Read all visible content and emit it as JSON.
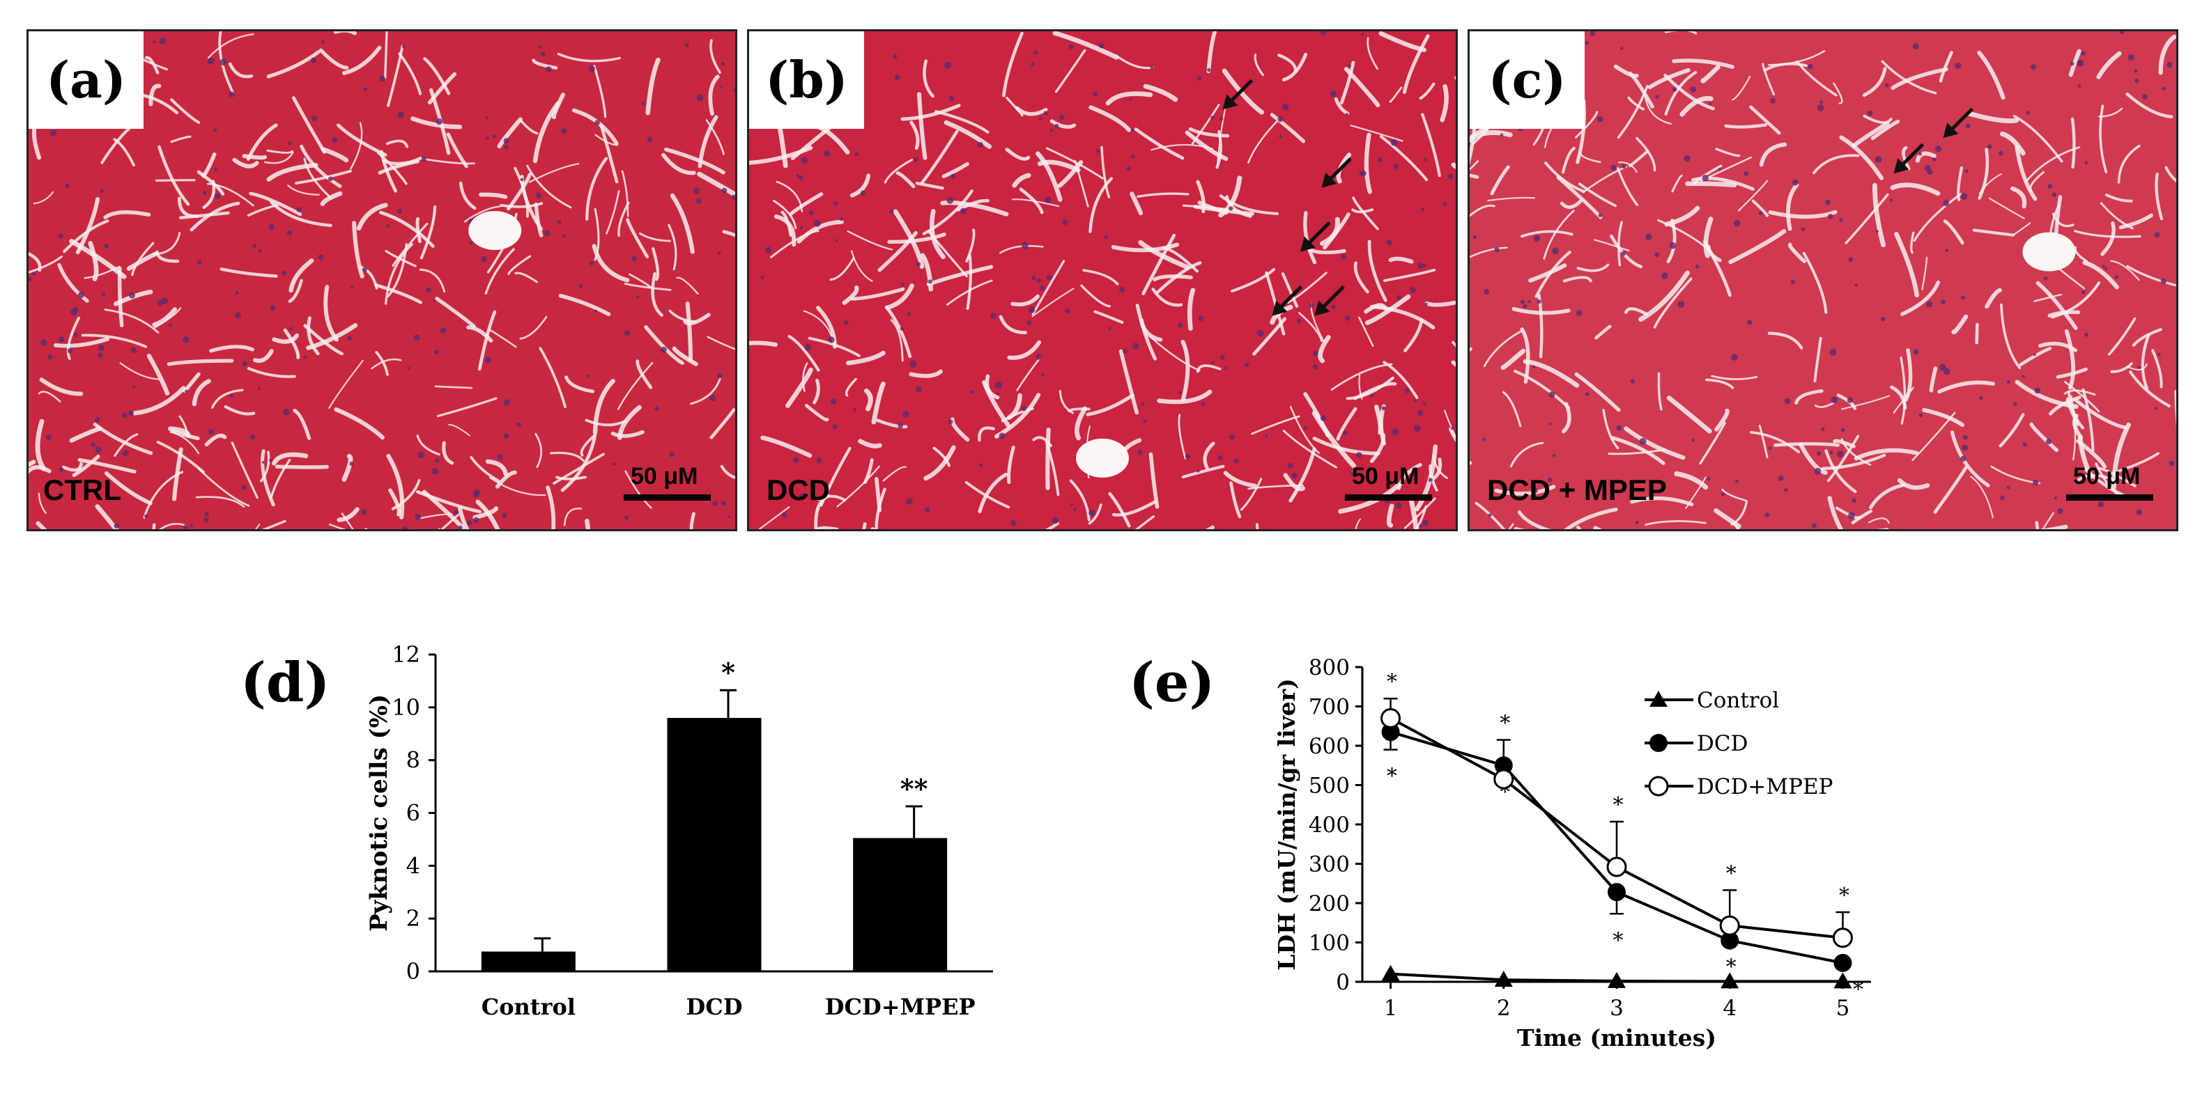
{
  "panels": [
    {
      "letter": "(a)",
      "group": "CTRL",
      "scale": "50 μM"
    },
    {
      "letter": "(b)",
      "group": "DCD",
      "scale": "50 μM"
    },
    {
      "letter": "(c)",
      "group": "DCD + MPEP",
      "scale": "50 μM"
    }
  ],
  "chart_data": [
    {
      "id": "d",
      "panel_letter": "(d)",
      "type": "bar",
      "categories": [
        "Control",
        "DCD",
        "DCD+MPEP"
      ],
      "values": [
        0.75,
        9.6,
        5.05
      ],
      "errors": [
        0.5,
        1.05,
        1.2
      ],
      "annotations": [
        "",
        "*",
        "**"
      ],
      "ylabel": "Pyknotic cells (%)",
      "xlabel": "",
      "ylim": [
        0,
        12
      ],
      "yticks": [
        0,
        2,
        4,
        6,
        8,
        10,
        12
      ],
      "bar_color": "#000000"
    },
    {
      "id": "e",
      "panel_letter": "(e)",
      "type": "line",
      "x": [
        1,
        2,
        3,
        4,
        5
      ],
      "xticks": [
        1,
        2,
        3,
        4,
        5
      ],
      "xlim": [
        0.75,
        5.25
      ],
      "ylim": [
        0,
        800
      ],
      "yticks": [
        0,
        100,
        200,
        300,
        400,
        500,
        600,
        700,
        800
      ],
      "xlabel": "Time (minutes)",
      "ylabel": "LDH (mU/min/gr liver)",
      "legend_position": "top-right",
      "series": [
        {
          "name": "Control",
          "marker": "triangle",
          "values": [
            20,
            5,
            2,
            1,
            1
          ],
          "errors": [
            0,
            0,
            0,
            0,
            0
          ],
          "stars": [
            "",
            "",
            "",
            "",
            ""
          ]
        },
        {
          "name": "DCD",
          "marker": "filled-circle",
          "values": [
            635,
            550,
            228,
            105,
            48
          ],
          "errors": [
            45,
            0,
            55,
            0,
            0
          ],
          "stars": [
            "*",
            "*",
            "*",
            "*",
            "*"
          ]
        },
        {
          "name": "DCD+MPEP",
          "marker": "open-circle",
          "values": [
            670,
            515,
            292,
            143,
            112
          ],
          "errors": [
            50,
            100,
            115,
            90,
            65
          ],
          "stars": [
            "*",
            "*",
            "*",
            "*",
            "*"
          ]
        }
      ]
    }
  ]
}
